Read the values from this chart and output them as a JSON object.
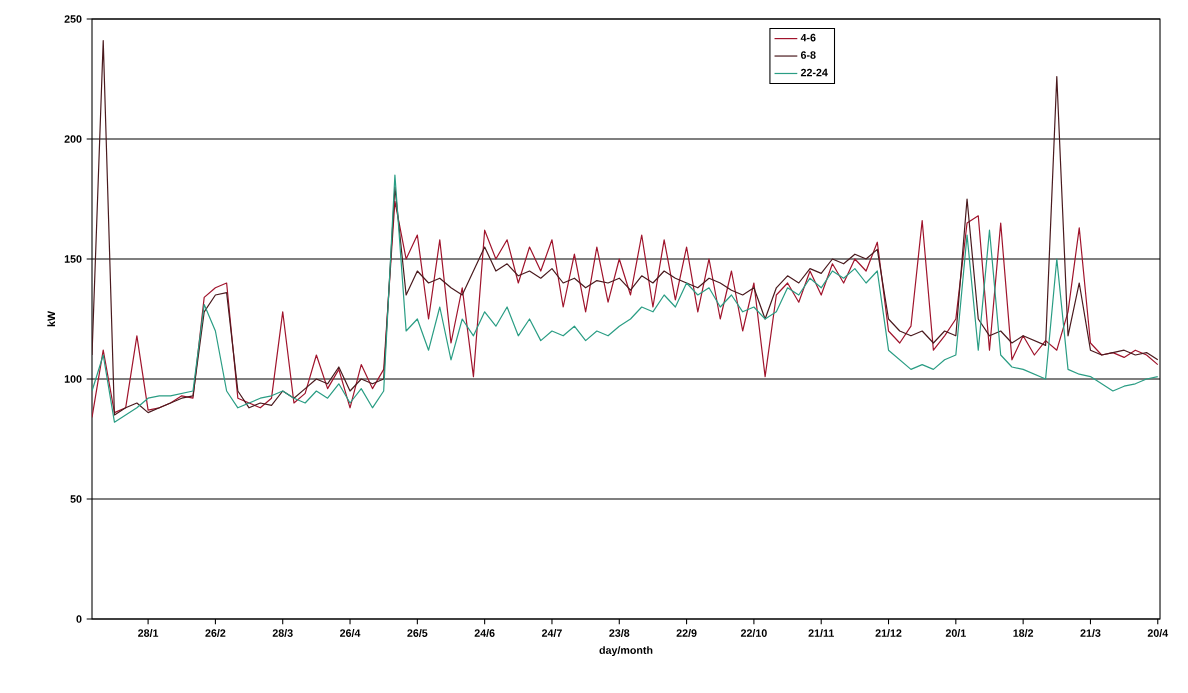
{
  "chart_data": {
    "type": "line",
    "xlabel": "day/month",
    "ylabel": "kW",
    "categories": [
      null,
      null,
      null,
      null,
      null,
      "28/1",
      null,
      null,
      null,
      null,
      null,
      "26/2",
      null,
      null,
      null,
      null,
      null,
      "28/3",
      null,
      null,
      null,
      null,
      null,
      "26/4",
      null,
      null,
      null,
      null,
      null,
      "26/5",
      null,
      null,
      null,
      null,
      null,
      "24/6",
      null,
      null,
      null,
      null,
      null,
      "24/7",
      null,
      null,
      null,
      null,
      null,
      "23/8",
      null,
      null,
      null,
      null,
      null,
      "22/9",
      null,
      null,
      null,
      null,
      null,
      "22/10",
      null,
      null,
      null,
      null,
      null,
      "21/11",
      null,
      null,
      null,
      null,
      null,
      "21/12",
      null,
      null,
      null,
      null,
      null,
      "20/1",
      null,
      null,
      null,
      null,
      null,
      "18/2",
      null,
      null,
      null,
      null,
      null,
      "21/3",
      null,
      null,
      null,
      null,
      null,
      "20/4"
    ],
    "series": [
      {
        "name": "4-6",
        "color": "#a0142c",
        "values": [
          84,
          112,
          86,
          88,
          118,
          87,
          88,
          90,
          93,
          92,
          134,
          138,
          140,
          92,
          90,
          88,
          92,
          128,
          90,
          94,
          110,
          96,
          104,
          88,
          106,
          96,
          104,
          174,
          150,
          160,
          125,
          158,
          115,
          138,
          101,
          162,
          150,
          158,
          140,
          155,
          145,
          158,
          130,
          152,
          128,
          155,
          132,
          150,
          135,
          160,
          130,
          158,
          133,
          155,
          128,
          150,
          125,
          145,
          120,
          140,
          101,
          135,
          140,
          132,
          145,
          135,
          148,
          140,
          150,
          145,
          157,
          120,
          115,
          122,
          166,
          112,
          118,
          125,
          165,
          168,
          112,
          165,
          108,
          118,
          110,
          116,
          112,
          128,
          163,
          115,
          110,
          111,
          109,
          112,
          110,
          106
        ]
      },
      {
        "name": "6-8",
        "color": "#4a1a1e",
        "values": [
          110,
          241,
          85,
          88,
          90,
          86,
          88,
          90,
          92,
          93,
          128,
          135,
          136,
          95,
          88,
          90,
          89,
          95,
          92,
          96,
          100,
          98,
          105,
          95,
          100,
          98,
          100,
          180,
          135,
          145,
          140,
          142,
          138,
          135,
          145,
          155,
          145,
          148,
          143,
          145,
          142,
          146,
          140,
          142,
          138,
          141,
          140,
          142,
          137,
          143,
          140,
          145,
          142,
          140,
          138,
          142,
          140,
          137,
          135,
          138,
          125,
          138,
          143,
          140,
          146,
          144,
          150,
          148,
          152,
          150,
          154,
          125,
          120,
          118,
          120,
          115,
          120,
          118,
          175,
          125,
          118,
          120,
          115,
          118,
          116,
          114,
          226,
          118,
          140,
          112,
          110,
          111,
          112,
          110,
          111,
          108
        ]
      },
      {
        "name": "22-24",
        "color": "#2a9d84",
        "values": [
          95,
          110,
          82,
          85,
          88,
          92,
          93,
          93,
          94,
          95,
          131,
          120,
          95,
          88,
          90,
          92,
          93,
          95,
          92,
          90,
          95,
          92,
          98,
          90,
          96,
          88,
          95,
          185,
          120,
          125,
          112,
          130,
          108,
          125,
          118,
          128,
          122,
          130,
          118,
          125,
          116,
          120,
          118,
          122,
          116,
          120,
          118,
          122,
          125,
          130,
          128,
          135,
          130,
          140,
          135,
          138,
          130,
          135,
          128,
          130,
          125,
          128,
          138,
          135,
          142,
          138,
          145,
          142,
          146,
          140,
          145,
          112,
          108,
          104,
          106,
          104,
          108,
          110,
          160,
          112,
          162,
          110,
          105,
          104,
          102,
          100,
          150,
          104,
          102,
          101,
          98,
          95,
          97,
          98,
          100,
          101
        ]
      }
    ],
    "ylim": [
      0,
      250
    ],
    "yticks": [
      0,
      50,
      100,
      150,
      200,
      250
    ],
    "grid": "y",
    "legend": "top",
    "marker": "none",
    "line_style": "solid"
  }
}
